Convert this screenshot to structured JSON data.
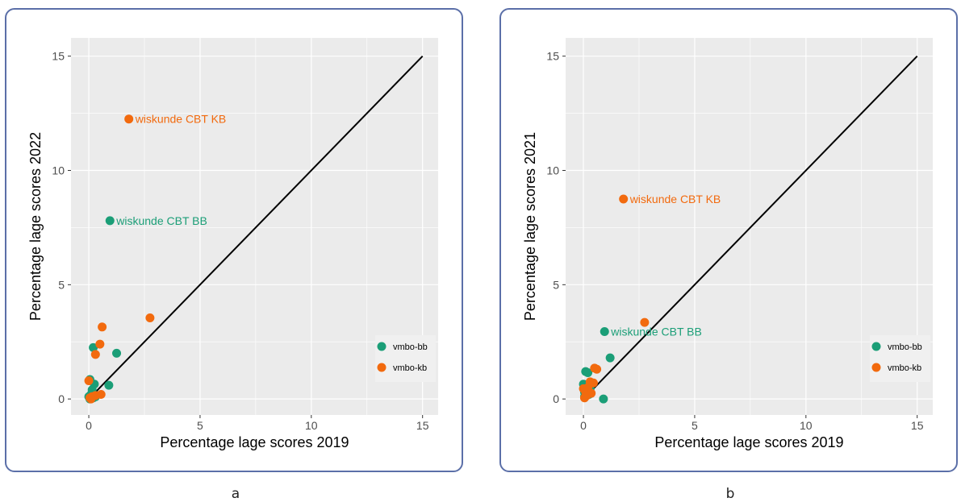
{
  "colors": {
    "vmbo_bb": "#1b9e77",
    "vmbo_kb": "#f26a0e",
    "panel_bg": "#ebebeb",
    "grid": "#ffffff",
    "border": "#5b6fa8"
  },
  "chart_data": [
    {
      "type": "scatter",
      "panel_label": "a",
      "xlabel": "Percentage lage scores 2019",
      "ylabel": "Percentage lage scores 2022",
      "xlim": [
        -0.8,
        15.7
      ],
      "ylim": [
        -0.7,
        15.8
      ],
      "xticks": [
        "0",
        "5",
        "10",
        "15"
      ],
      "yticks": [
        "0",
        "5",
        "10",
        "15"
      ],
      "grid": true,
      "legend_position": "bottom-right",
      "reference_line": {
        "from": [
          0,
          0
        ],
        "to": [
          15,
          15
        ]
      },
      "series": [
        {
          "name": "vmbo-bb",
          "color": "#1b9e77",
          "points": [
            [
              0.95,
              7.8
            ],
            [
              1.25,
              2.0
            ],
            [
              0.9,
              0.6
            ],
            [
              0.2,
              2.25
            ],
            [
              0.05,
              0.85
            ],
            [
              0.25,
              0.65
            ],
            [
              0.15,
              0.4
            ],
            [
              0.0,
              0.1
            ],
            [
              0.05,
              0.0
            ],
            [
              0.2,
              0.05
            ],
            [
              0.1,
              0.2
            ],
            [
              0.3,
              0.1
            ]
          ]
        },
        {
          "name": "vmbo-kb",
          "color": "#f26a0e",
          "points": [
            [
              1.8,
              12.25
            ],
            [
              2.75,
              3.55
            ],
            [
              0.6,
              3.15
            ],
            [
              0.5,
              2.4
            ],
            [
              0.3,
              1.95
            ],
            [
              0.0,
              0.8
            ],
            [
              0.55,
              0.2
            ],
            [
              0.3,
              0.15
            ],
            [
              0.15,
              0.1
            ],
            [
              0.05,
              0.05
            ],
            [
              0.1,
              0.0
            ]
          ]
        }
      ],
      "annotations": [
        {
          "text": "wiskunde CBT KB",
          "x": 1.8,
          "y": 12.25,
          "series": "vmbo-kb"
        },
        {
          "text": "wiskunde CBT BB",
          "x": 0.95,
          "y": 7.8,
          "series": "vmbo-bb"
        }
      ]
    },
    {
      "type": "scatter",
      "panel_label": "b",
      "xlabel": "Percentage lage scores 2019",
      "ylabel": "Percentage lage scores 2021",
      "xlim": [
        -0.8,
        15.7
      ],
      "ylim": [
        -0.7,
        15.8
      ],
      "xticks": [
        "0",
        "5",
        "10",
        "15"
      ],
      "yticks": [
        "0",
        "5",
        "10",
        "15"
      ],
      "grid": true,
      "legend_position": "bottom-right",
      "reference_line": {
        "from": [
          0,
          0
        ],
        "to": [
          15,
          15
        ]
      },
      "series": [
        {
          "name": "vmbo-bb",
          "color": "#1b9e77",
          "points": [
            [
              0.95,
              2.95
            ],
            [
              1.2,
              1.8
            ],
            [
              0.1,
              1.2
            ],
            [
              0.2,
              1.15
            ],
            [
              0.0,
              0.65
            ],
            [
              0.05,
              0.3
            ],
            [
              0.15,
              0.55
            ],
            [
              0.05,
              0.1
            ],
            [
              0.9,
              0.0
            ],
            [
              0.25,
              0.2
            ],
            [
              0.3,
              0.45
            ]
          ]
        },
        {
          "name": "vmbo-kb",
          "color": "#f26a0e",
          "points": [
            [
              1.8,
              8.75
            ],
            [
              2.75,
              3.35
            ],
            [
              0.5,
              1.35
            ],
            [
              0.6,
              1.3
            ],
            [
              0.3,
              0.75
            ],
            [
              0.45,
              0.7
            ],
            [
              0.2,
              0.5
            ],
            [
              0.0,
              0.45
            ],
            [
              0.1,
              0.3
            ],
            [
              0.35,
              0.25
            ],
            [
              0.15,
              0.15
            ],
            [
              0.05,
              0.05
            ]
          ]
        }
      ],
      "annotations": [
        {
          "text": "wiskunde CBT KB",
          "x": 1.8,
          "y": 8.75,
          "series": "vmbo-kb"
        },
        {
          "text": "wiskunde CBT BB",
          "x": 0.95,
          "y": 2.95,
          "series": "vmbo-bb"
        }
      ]
    }
  ]
}
